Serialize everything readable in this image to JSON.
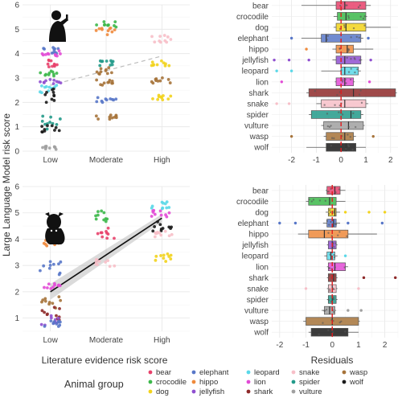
{
  "figure": {
    "shared_ylabel": "Large Language Model risk score",
    "scatter_xlabel": "Literature evidence risk score",
    "box_xlabel": "Residuals",
    "legend_title": "Animal group"
  },
  "animals": [
    "bear",
    "crocodile",
    "dog",
    "elephant",
    "hippo",
    "jellyfish",
    "leopard",
    "lion",
    "shark",
    "snake",
    "spider",
    "vulture",
    "wasp",
    "wolf"
  ],
  "colors": {
    "bear": "#e8416b",
    "crocodile": "#3cb84a",
    "dog": "#f2d31c",
    "elephant": "#5877c8",
    "hippo": "#ef8a3c",
    "jellyfish": "#8f4fd0",
    "leopard": "#5ad8e8",
    "lion": "#e24bd6",
    "shark": "#8e2a2a",
    "snake": "#f7bfc8",
    "spider": "#229a8a",
    "vulture": "#a0a0a0",
    "wasp": "#a6733a",
    "wolf": "#1a1a1a"
  },
  "legend": {
    "title": "Animal group",
    "items": [
      {
        "key": "bear",
        "label": "bear"
      },
      {
        "key": "crocodile",
        "label": "crocodile"
      },
      {
        "key": "dog",
        "label": "dog"
      },
      {
        "key": "elephant",
        "label": "elephant"
      },
      {
        "key": "hippo",
        "label": "hippo"
      },
      {
        "key": "jellyfish",
        "label": "jellyfish"
      },
      {
        "key": "leopard",
        "label": "leopard"
      },
      {
        "key": "lion",
        "label": "lion"
      },
      {
        "key": "shark",
        "label": "shark"
      },
      {
        "key": "snake",
        "label": "snake"
      },
      {
        "key": "spider",
        "label": "spider"
      },
      {
        "key": "vulture",
        "label": "vulture"
      },
      {
        "key": "wasp",
        "label": "wasp"
      },
      {
        "key": "wolf",
        "label": "wolf"
      }
    ]
  },
  "chart_data": [
    {
      "type": "scatter",
      "panel": "top-left",
      "icon": "human-icon",
      "xlabel": "",
      "ylabel": "Large Language Model risk score",
      "categories": [
        "Low",
        "Moderate",
        "High"
      ],
      "ylim": [
        0,
        6
      ],
      "yticks": [
        0,
        1,
        2,
        3,
        4,
        5,
        6
      ],
      "trend": {
        "x": [
          "Low",
          "High"
        ],
        "y": [
          2.7,
          3.9
        ],
        "style": "dashed"
      },
      "groups": [
        {
          "category": "Low",
          "animal": "elephant",
          "mean": 4.1,
          "spread": 0.15
        },
        {
          "category": "Low",
          "animal": "lion",
          "mean": 4.0,
          "spread": 0.15
        },
        {
          "category": "Low",
          "animal": "bear",
          "mean": 3.6,
          "spread": 0.15
        },
        {
          "category": "Low",
          "animal": "crocodile",
          "mean": 3.2,
          "spread": 0.12
        },
        {
          "category": "Low",
          "animal": "jellyfish",
          "mean": 2.8,
          "spread": 0.15
        },
        {
          "category": "Low",
          "animal": "leopard",
          "mean": 2.5,
          "spread": 0.2
        },
        {
          "category": "Low",
          "animal": "wolf",
          "mean": 2.3,
          "spread": 0.3
        },
        {
          "category": "Low",
          "animal": "spider",
          "mean": 1.2,
          "spread": 0.3
        },
        {
          "category": "Low",
          "animal": "wolf",
          "mean": 0.9,
          "spread": 0.15
        },
        {
          "category": "Low",
          "animal": "vulture",
          "mean": 0.15,
          "spread": 0.08
        },
        {
          "category": "Moderate",
          "animal": "crocodile",
          "mean": 5.2,
          "spread": 0.12
        },
        {
          "category": "Moderate",
          "animal": "hippo",
          "mean": 4.9,
          "spread": 0.15
        },
        {
          "category": "Moderate",
          "animal": "spider",
          "mean": 3.6,
          "spread": 0.12
        },
        {
          "category": "Moderate",
          "animal": "wasp",
          "mean": 3.3,
          "spread": 0.15
        },
        {
          "category": "Moderate",
          "animal": "wasp",
          "mean": 2.8,
          "spread": 0.12
        },
        {
          "category": "Moderate",
          "animal": "elephant",
          "mean": 2.1,
          "spread": 0.1
        },
        {
          "category": "Moderate",
          "animal": "wasp",
          "mean": 1.4,
          "spread": 0.12
        },
        {
          "category": "High",
          "animal": "snake",
          "mean": 4.6,
          "spread": 0.15
        },
        {
          "category": "High",
          "animal": "dog",
          "mean": 3.6,
          "spread": 0.12
        },
        {
          "category": "High",
          "animal": "wasp",
          "mean": 2.9,
          "spread": 0.12
        },
        {
          "category": "High",
          "animal": "dog",
          "mean": 2.2,
          "spread": 0.1
        }
      ]
    },
    {
      "type": "box",
      "panel": "top-right",
      "xlabel": "",
      "xlim": [
        -2.8,
        2.3
      ],
      "xticks": [
        -2,
        -1,
        0,
        1,
        2
      ],
      "reference_line": 0,
      "boxes": [
        {
          "animal": "bear",
          "q1": -0.2,
          "median": 0.15,
          "q3": 1.0,
          "whisker_low": -1.6,
          "whisker_high": 1.2,
          "outliers": []
        },
        {
          "animal": "crocodile",
          "q1": -0.15,
          "median": 0.2,
          "q3": 1.0,
          "whisker_low": -0.3,
          "whisker_high": 1.05,
          "outliers": []
        },
        {
          "animal": "dog",
          "q1": -0.2,
          "median": 0.2,
          "q3": 1.0,
          "whisker_low": -0.3,
          "whisker_high": 2.0,
          "outliers": []
        },
        {
          "animal": "elephant",
          "q1": -0.8,
          "median": -0.6,
          "q3": 0.8,
          "whisker_low": -1.6,
          "whisker_high": 0.9,
          "outliers": [
            -2.0,
            1.1
          ]
        },
        {
          "animal": "hippo",
          "q1": -0.2,
          "median": 0.25,
          "q3": 0.5,
          "whisker_low": -0.35,
          "whisker_high": 1.3,
          "outliers": [
            -1.4
          ]
        },
        {
          "animal": "jellyfish",
          "q1": -0.2,
          "median": 0.15,
          "q3": 0.8,
          "whisker_low": -0.35,
          "whisker_high": 0.85,
          "outliers": [
            -2.7,
            -2.1,
            -1.3,
            1.2
          ]
        },
        {
          "animal": "leopard",
          "q1": 0.0,
          "median": 0.15,
          "q3": 0.7,
          "whisker_low": -0.8,
          "whisker_high": 0.8,
          "outliers": [
            -2.6,
            -2.0
          ]
        },
        {
          "animal": "lion",
          "q1": -0.2,
          "median": 0.15,
          "q3": 0.5,
          "whisker_low": -0.25,
          "whisker_high": 0.55,
          "outliers": [
            -2.4,
            1.15
          ]
        },
        {
          "animal": "shark",
          "q1": -1.3,
          "median": 0.5,
          "q3": 2.2,
          "whisker_low": -1.4,
          "whisker_high": 2.25,
          "outliers": []
        },
        {
          "animal": "snake",
          "q1": -0.8,
          "median": 0.15,
          "q3": 1.0,
          "whisker_low": -1.0,
          "whisker_high": 1.1,
          "outliers": [
            -2.6,
            -2.1
          ]
        },
        {
          "animal": "spider",
          "q1": -1.2,
          "median": 0.4,
          "q3": 0.8,
          "whisker_low": -1.3,
          "whisker_high": 0.9,
          "outliers": []
        },
        {
          "animal": "vulture",
          "q1": -0.7,
          "median": 0.3,
          "q3": 0.9,
          "whisker_low": -0.8,
          "whisker_high": 0.95,
          "outliers": []
        },
        {
          "animal": "wasp",
          "q1": -0.6,
          "median": 0.15,
          "q3": 0.5,
          "whisker_low": -0.7,
          "whisker_high": 0.6,
          "outliers": [
            -2.0,
            1.3
          ]
        },
        {
          "animal": "wolf",
          "q1": -0.6,
          "median": 0.2,
          "q3": 0.6,
          "whisker_low": -1.4,
          "whisker_high": 1.0,
          "outliers": []
        }
      ]
    },
    {
      "type": "scatter",
      "panel": "bottom-left",
      "icon": "cow-icon",
      "xlabel": "Literature evidence risk score",
      "ylabel": "Large Language Model risk score",
      "categories": [
        "Low",
        "Moderate",
        "High"
      ],
      "ylim": [
        0.5,
        6
      ],
      "yticks": [
        1,
        2,
        3,
        4,
        5,
        6
      ],
      "trend": {
        "x": [
          "Low",
          "High"
        ],
        "y": [
          2.0,
          4.8
        ],
        "style": "solid",
        "band": 0.15
      },
      "groups": [
        {
          "category": "Low",
          "animal": "hippo",
          "mean": 3.9,
          "spread": 0.2
        },
        {
          "category": "Low",
          "animal": "elephant",
          "mean": 2.9,
          "spread": 0.25
        },
        {
          "category": "Low",
          "animal": "lion",
          "mean": 2.2,
          "spread": 0.12
        },
        {
          "category": "Low",
          "animal": "wasp",
          "mean": 1.6,
          "spread": 0.25
        },
        {
          "category": "Low",
          "animal": "shark",
          "mean": 1.2,
          "spread": 0.3
        },
        {
          "category": "Low",
          "animal": "jellyfish",
          "mean": 0.9,
          "spread": 0.2
        },
        {
          "category": "Low",
          "animal": "elephant",
          "mean": 0.8,
          "spread": 0.12
        },
        {
          "category": "Moderate",
          "animal": "crocodile",
          "mean": 4.9,
          "spread": 0.25
        },
        {
          "category": "Moderate",
          "animal": "bear",
          "mean": 4.2,
          "spread": 0.25
        },
        {
          "category": "Moderate",
          "animal": "snake",
          "mean": 3.1,
          "spread": 0.15
        },
        {
          "category": "High",
          "animal": "leopard",
          "mean": 5.3,
          "spread": 0.15
        },
        {
          "category": "High",
          "animal": "lion",
          "mean": 5.0,
          "spread": 0.15
        },
        {
          "category": "High",
          "animal": "wolf",
          "mean": 4.5,
          "spread": 0.2
        },
        {
          "category": "High",
          "animal": "snake",
          "mean": 4.2,
          "spread": 0.12
        },
        {
          "category": "High",
          "animal": "dog",
          "mean": 3.3,
          "spread": 0.15
        }
      ]
    },
    {
      "type": "box",
      "panel": "bottom-right",
      "xlabel": "Residuals",
      "xlim": [
        -2.3,
        2.5
      ],
      "xticks": [
        -2,
        -1,
        0,
        1,
        2
      ],
      "reference_line": 0,
      "boxes": [
        {
          "animal": "bear",
          "q1": -0.2,
          "median": 0.1,
          "q3": 0.3,
          "whisker_low": -0.25,
          "whisker_high": 0.5,
          "outliers": []
        },
        {
          "animal": "crocodile",
          "q1": -0.9,
          "median": -0.1,
          "q3": 0.15,
          "whisker_low": -1.0,
          "whisker_high": 0.5,
          "outliers": []
        },
        {
          "animal": "dog",
          "q1": -0.15,
          "median": 0.1,
          "q3": 0.15,
          "whisker_low": -0.25,
          "whisker_high": 0.3,
          "outliers": [
            0.5,
            1.4,
            2.0
          ]
        },
        {
          "animal": "elephant",
          "q1": -0.2,
          "median": 0.05,
          "q3": 0.15,
          "whisker_low": -0.35,
          "whisker_high": 0.3,
          "outliers": [
            -2.0,
            -1.4,
            0.6,
            1.9
          ]
        },
        {
          "animal": "hippo",
          "q1": -0.9,
          "median": -0.3,
          "q3": 0.6,
          "whisker_low": -1.3,
          "whisker_high": 1.7,
          "outliers": []
        },
        {
          "animal": "jellyfish",
          "q1": -0.15,
          "median": 0.0,
          "q3": 0.15,
          "whisker_low": -0.2,
          "whisker_high": 0.2,
          "outliers": []
        },
        {
          "animal": "leopard",
          "q1": -0.2,
          "median": -0.05,
          "q3": 0.1,
          "whisker_low": -0.3,
          "whisker_high": 0.2,
          "outliers": [
            0.5
          ]
        },
        {
          "animal": "lion",
          "q1": -0.15,
          "median": 0.1,
          "q3": 0.5,
          "whisker_low": -0.2,
          "whisker_high": 0.6,
          "outliers": []
        },
        {
          "animal": "shark",
          "q1": -0.15,
          "median": 0.05,
          "q3": 0.15,
          "whisker_low": -0.2,
          "whisker_high": 0.2,
          "outliers": [
            2.4,
            1.2
          ]
        },
        {
          "animal": "snake",
          "q1": -0.15,
          "median": 0.0,
          "q3": 0.15,
          "whisker_low": -0.2,
          "whisker_high": 0.2,
          "outliers": [
            -1.0,
            1.0
          ]
        },
        {
          "animal": "spider",
          "q1": -0.15,
          "median": 0.0,
          "q3": 0.15,
          "whisker_low": -0.2,
          "whisker_high": 0.2,
          "outliers": []
        },
        {
          "animal": "vulture",
          "q1": -0.3,
          "median": -0.1,
          "q3": 0.1,
          "whisker_low": -0.4,
          "whisker_high": 0.15,
          "outliers": [
            0.6,
            1.1
          ]
        },
        {
          "animal": "wasp",
          "q1": -1.0,
          "median": 0.0,
          "q3": 1.0,
          "whisker_low": -1.1,
          "whisker_high": 1.05,
          "outliers": []
        },
        {
          "animal": "wolf",
          "q1": -0.8,
          "median": 0.0,
          "q3": 0.6,
          "whisker_low": -0.9,
          "whisker_high": 1.0,
          "outliers": []
        }
      ]
    }
  ]
}
